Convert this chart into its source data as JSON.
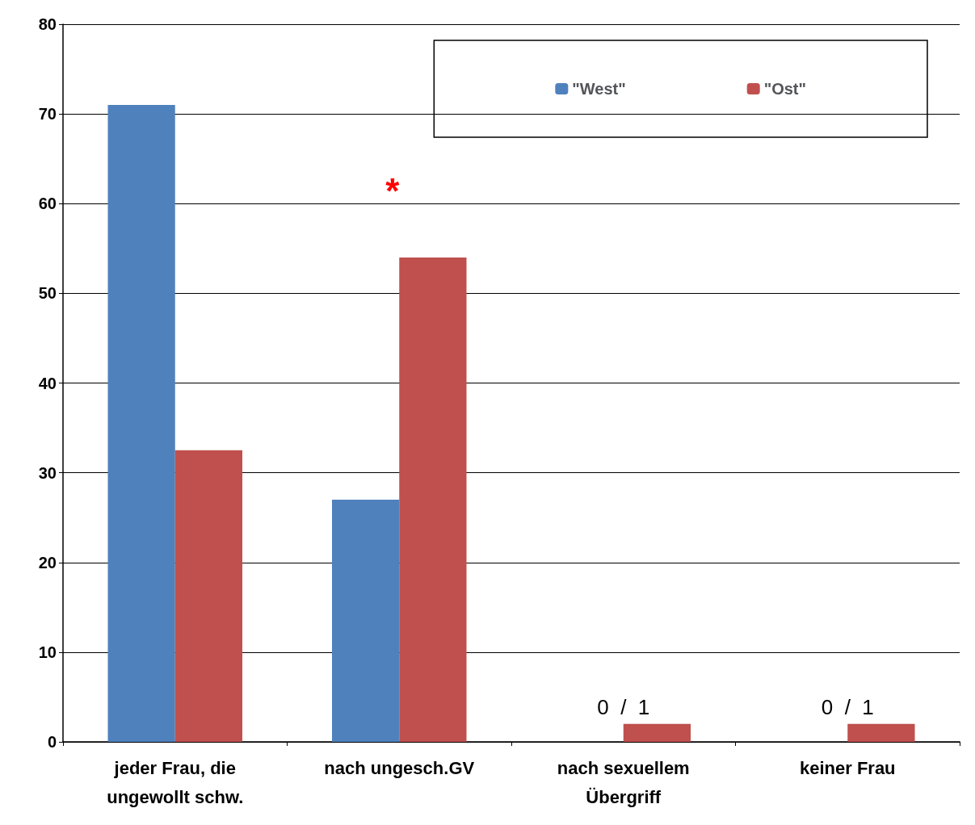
{
  "chart_data": {
    "type": "bar",
    "categories": [
      "jeder Frau, die\nungewollt schw.",
      "nach ungesch.GV",
      "nach sexuellem\nÜbergriff",
      "keiner Frau"
    ],
    "series": [
      {
        "name": "\"West\"",
        "color": "#4f81bd",
        "values": [
          71,
          27,
          0,
          0
        ]
      },
      {
        "name": "\"Ost\"",
        "color": "#c0504d",
        "values": [
          32.5,
          54,
          2,
          2
        ]
      }
    ],
    "ylim": [
      0,
      80
    ],
    "yticks": [
      0,
      10,
      20,
      30,
      40,
      50,
      60,
      70,
      80
    ],
    "grid": "y",
    "legend": "top right",
    "annotations": [
      {
        "text": "*",
        "x": "nach ungesch.GV",
        "y": 54
      },
      {
        "text": "0  /  1",
        "x": "nach sexuellem\nÜbergriff",
        "y": 2
      },
      {
        "text": "0  /  1",
        "x": "keiner Frau",
        "y": 2
      }
    ]
  }
}
